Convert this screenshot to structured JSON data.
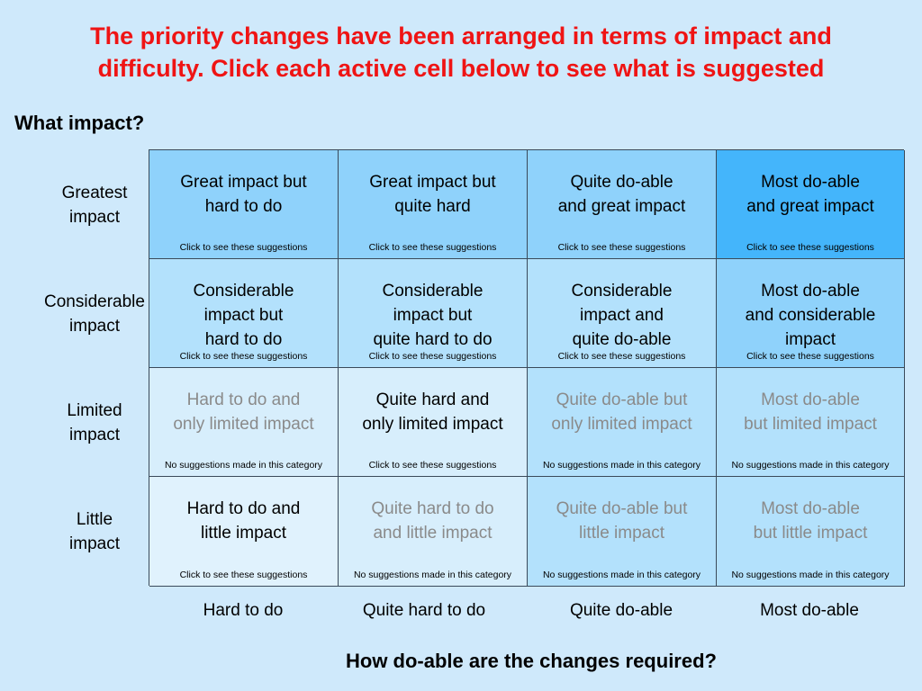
{
  "title": {
    "line1": "The priority changes have been arranged in terms of impact and",
    "line2": "difficulty. Click each active cell below to see what is suggested"
  },
  "y_axis_title": "What impact?",
  "x_axis_title": "How do-able are the changes required?",
  "row_labels": [
    [
      "Greatest",
      "impact"
    ],
    [
      "Considerable",
      "impact"
    ],
    [
      "Limited",
      "impact"
    ],
    [
      "Little",
      "impact"
    ]
  ],
  "col_labels": [
    "Hard to do",
    "Quite hard to do",
    "Quite do-able",
    "Most do-able"
  ],
  "colors": {
    "background": "#cfe9fb",
    "title": "#ef1414",
    "inactive_text": "#8a8a8a"
  },
  "grid": [
    [
      {
        "lines": [
          "Great impact but",
          "hard to do"
        ],
        "note": "Click to see these suggestions",
        "active": true,
        "bg": "#8fd2fb"
      },
      {
        "lines": [
          "Great impact but",
          "quite hard"
        ],
        "note": "Click to see these suggestions",
        "active": true,
        "bg": "#8fd2fb"
      },
      {
        "lines": [
          "Quite do-able",
          "and great impact"
        ],
        "note": "Click to see these suggestions",
        "active": true,
        "bg": "#8fd2fb"
      },
      {
        "lines": [
          "Most do-able",
          "and great impact"
        ],
        "note": "Click to see these suggestions",
        "active": true,
        "bg": "#44b5fb"
      }
    ],
    [
      {
        "lines": [
          "Considerable",
          "impact but",
          "hard to do"
        ],
        "note": "Click to see these suggestions",
        "active": true,
        "bg": "#b3e1fc"
      },
      {
        "lines": [
          "Considerable",
          "impact but",
          "quite hard to do"
        ],
        "note": "Click to see these suggestions",
        "active": true,
        "bg": "#b3e1fc"
      },
      {
        "lines": [
          "Considerable",
          "impact and",
          "quite do-able"
        ],
        "note": "Click to see these suggestions",
        "active": true,
        "bg": "#b3e1fc"
      },
      {
        "lines": [
          "Most do-able",
          "and considerable",
          "impact"
        ],
        "note": "Click to see these suggestions",
        "active": true,
        "bg": "#8fd2fb"
      }
    ],
    [
      {
        "lines": [
          "Hard to do and",
          "only limited impact"
        ],
        "note": "No suggestions made in this category",
        "active": false,
        "bg": "#d7eefc"
      },
      {
        "lines": [
          "Quite hard and",
          "only limited impact"
        ],
        "note": "Click to see these suggestions",
        "active": true,
        "bg": "#d7eefc"
      },
      {
        "lines": [
          "Quite do-able but",
          "only limited impact"
        ],
        "note": "No suggestions made in this category",
        "active": false,
        "bg": "#b3e1fc"
      },
      {
        "lines": [
          "Most do-able",
          "but limited impact"
        ],
        "note": "No suggestions made in this category",
        "active": false,
        "bg": "#b3e1fc"
      }
    ],
    [
      {
        "lines": [
          "Hard to do and",
          "little impact"
        ],
        "note": "Click to see these suggestions",
        "active": true,
        "bg": "#e0f2fd"
      },
      {
        "lines": [
          "Quite hard to do",
          "and little impact"
        ],
        "note": "No suggestions made in this category",
        "active": false,
        "bg": "#d7eefc"
      },
      {
        "lines": [
          "Quite do-able but",
          "little impact"
        ],
        "note": "No suggestions made in this category",
        "active": false,
        "bg": "#b3e1fc"
      },
      {
        "lines": [
          "Most do-able",
          "but little impact"
        ],
        "note": "No suggestions made in this category",
        "active": false,
        "bg": "#b3e1fc"
      }
    ]
  ]
}
